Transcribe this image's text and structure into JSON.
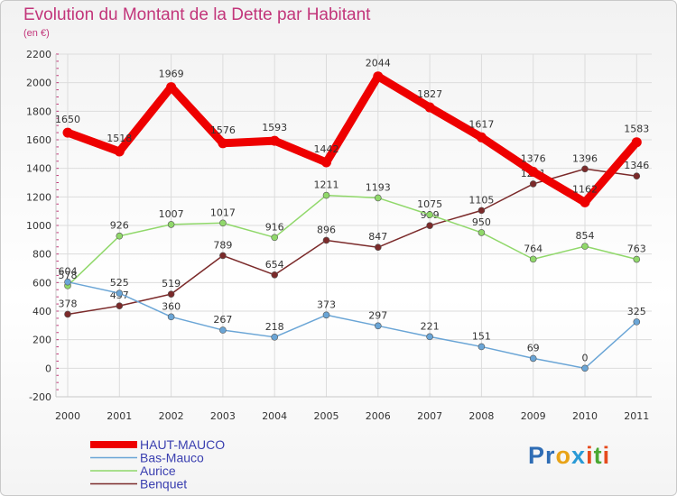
{
  "title": "Evolution du Montant de la Dette par Habitant",
  "subtitle": "(en €)",
  "logo": {
    "letters": [
      "P",
      "r",
      "o",
      "x",
      "i",
      "t",
      "i"
    ],
    "colors": [
      "#2f6db5",
      "#2f6db5",
      "#e8a317",
      "#2a9ad6",
      "#e64b1e",
      "#4aa832",
      "#e64b1e"
    ]
  },
  "chart_data": {
    "type": "line",
    "title": "Evolution du Montant de la Dette par Habitant",
    "subtitle": "(en €)",
    "xlabel": "",
    "ylabel": "",
    "ylim": [
      -200,
      2200
    ],
    "yticks": [
      -200,
      0,
      200,
      400,
      600,
      800,
      1000,
      1200,
      1400,
      1600,
      1800,
      2000,
      2200
    ],
    "grid": true,
    "legend_position": "bottom-left",
    "x": [
      "2000",
      "2001",
      "2002",
      "2003",
      "2004",
      "2005",
      "2006",
      "2007",
      "2008",
      "2009",
      "2010",
      "2011"
    ],
    "series": [
      {
        "name": "Benquet",
        "color": "#7b2a2a",
        "values": [
          378,
          437,
          519,
          789,
          654,
          896,
          847,
          999,
          1105,
          1291,
          1396,
          1346
        ]
      },
      {
        "name": "Aurice",
        "color": "#90d86a",
        "values": [
          578,
          926,
          1007,
          1017,
          916,
          1211,
          1193,
          1075,
          950,
          764,
          854,
          763
        ]
      },
      {
        "name": "Bas-Mauco",
        "color": "#6aa5d6",
        "values": [
          604,
          525,
          360,
          267,
          218,
          373,
          297,
          221,
          151,
          69,
          0,
          325
        ]
      },
      {
        "name": "HAUT-MAUCO",
        "color": "#ee0000",
        "values": [
          1650,
          1518,
          1969,
          1576,
          1593,
          1442,
          2044,
          1827,
          1617,
          1376,
          1162,
          1583
        ]
      }
    ]
  }
}
